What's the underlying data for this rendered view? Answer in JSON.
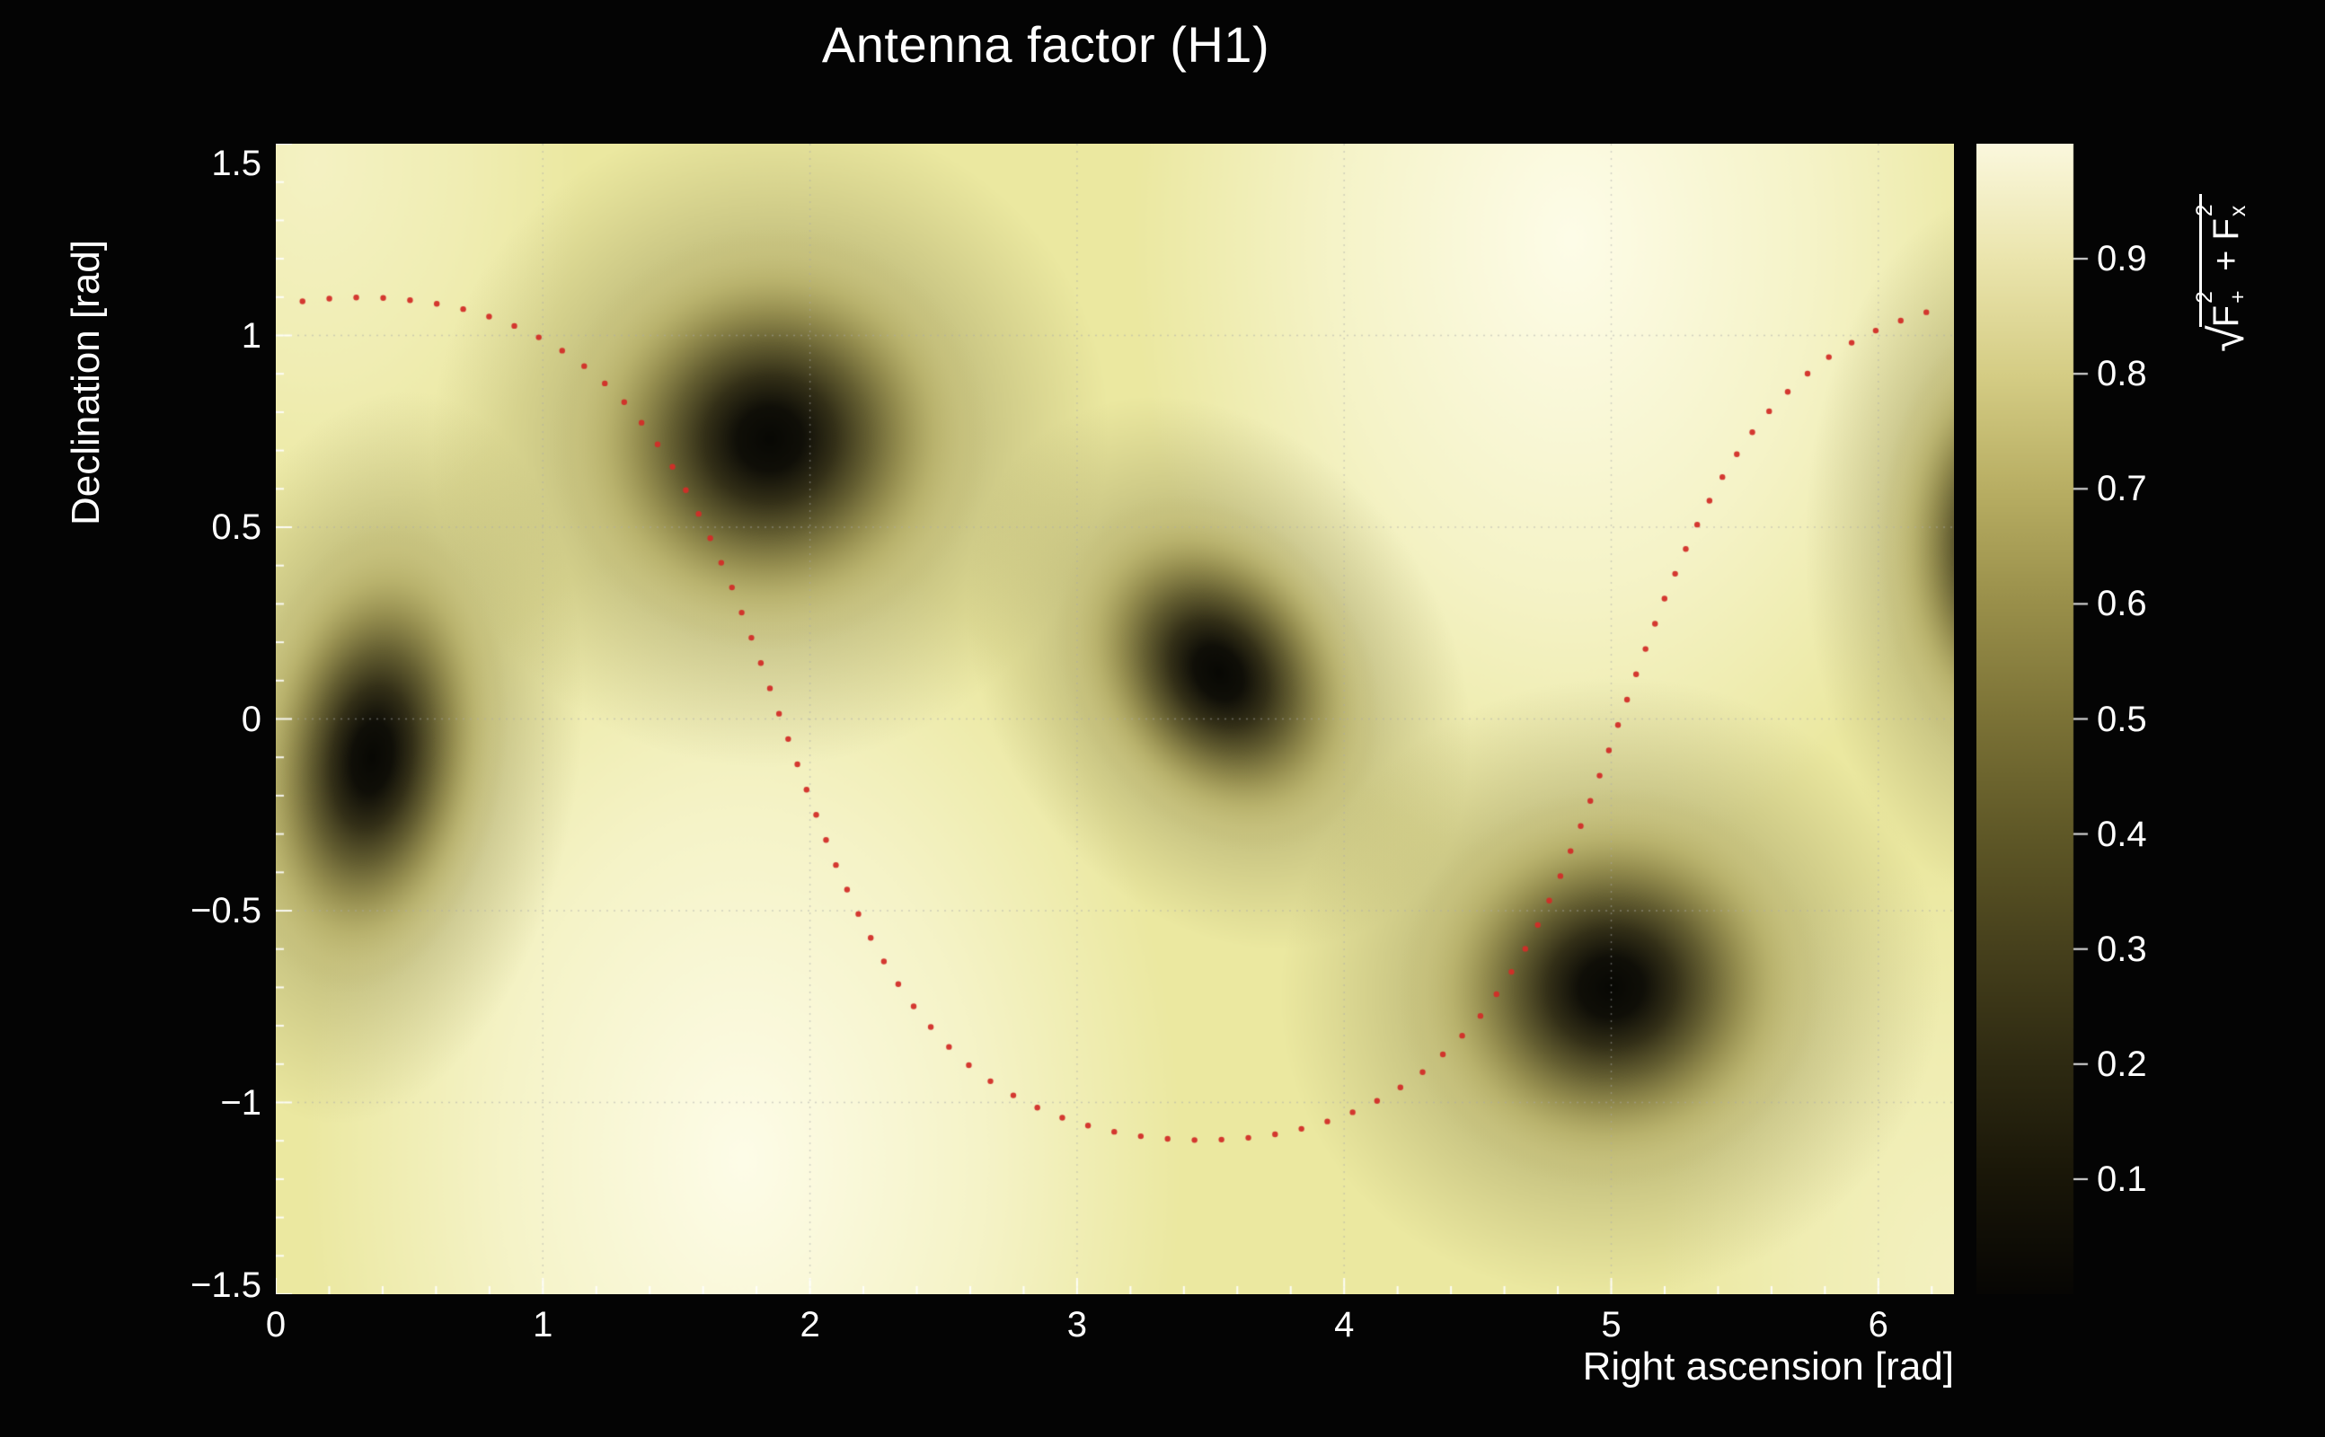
{
  "colors": {
    "background": "#040404",
    "text": "#ffffff",
    "accent_track": "#d22d28"
  },
  "chart_data": {
    "type": "heatmap",
    "title": "Antenna factor (H1)",
    "xlabel": "Right ascension [rad]",
    "ylabel": "Declination [rad]",
    "zlabel": "sqrt(F+^2 + Fx^2)",
    "zlabel_parts": {
      "sqrt": "√",
      "f1": "F",
      "f1_sup": "2",
      "f1_sub": "+",
      "plus": " + ",
      "f2": "F",
      "f2_sup": "2",
      "f2_sub": "x"
    },
    "xlim": [
      0,
      6.2832
    ],
    "ylim": [
      -1.5,
      1.5
    ],
    "zlim": [
      0,
      1.0
    ],
    "x_ticks": [
      0,
      1,
      2,
      3,
      4,
      5,
      6
    ],
    "x_tick_labels": [
      "0",
      "1",
      "2",
      "3",
      "4",
      "5",
      "6"
    ],
    "x_minor_step": 0.2,
    "y_ticks": [
      -1.5,
      -1,
      -0.5,
      0,
      0.5,
      1,
      1.5
    ],
    "y_tick_labels": [
      "−1.5",
      "−1",
      "−0.5",
      "0",
      "0.5",
      "1",
      "1.5"
    ],
    "y_minor_step": 0.1,
    "grid": {
      "x_lines": [
        1,
        2,
        3,
        4,
        5,
        6
      ],
      "y_lines": [
        -1,
        -0.5,
        0,
        0.5,
        1
      ],
      "color": "rgba(170,170,170,0.5)",
      "dash": [
        2,
        6
      ]
    },
    "base_color": "#ebe8a0",
    "bright_regions": [
      {
        "x": 1.75,
        "y": -1.15,
        "r": 1.65,
        "color": "255,254,238",
        "alpha": 0.92
      },
      {
        "x": 4.85,
        "y": 1.25,
        "r": 1.65,
        "color": "255,254,238",
        "alpha": 0.92
      },
      {
        "x": 0.15,
        "y": 1.45,
        "r": 1.0,
        "color": "252,250,224",
        "alpha": 0.55
      },
      {
        "x": 6.28,
        "y": -1.45,
        "r": 1.1,
        "color": "252,250,224",
        "alpha": 0.5
      }
    ],
    "nulls": [
      {
        "x": 0.36,
        "y": -0.1,
        "rx": 0.5,
        "ry": 0.62,
        "rot_deg": 8
      },
      {
        "x": 1.85,
        "y": 0.73,
        "rx": 0.82,
        "ry": 0.55,
        "rot_deg": -15
      },
      {
        "x": 3.53,
        "y": 0.12,
        "rx": 0.55,
        "ry": 0.5,
        "rot_deg": -35
      },
      {
        "x": 5.0,
        "y": -0.7,
        "rx": 0.8,
        "ry": 0.52,
        "rot_deg": -10
      },
      {
        "x": 6.5,
        "y": 0.45,
        "rx": 0.5,
        "ry": 0.6,
        "rot_deg": 0
      }
    ],
    "null_gradient": [
      [
        0.0,
        "rgba(8,8,4,1)"
      ],
      [
        0.15,
        "rgba(16,15,8,1)"
      ],
      [
        0.3,
        "rgba(52,48,24,1)"
      ],
      [
        0.45,
        "rgba(96,90,46,0.95)"
      ],
      [
        0.6,
        "rgba(142,134,72,0.85)"
      ],
      [
        0.75,
        "rgba(178,170,98,0.6)"
      ],
      [
        0.88,
        "rgba(196,188,116,0.3)"
      ],
      [
        1.0,
        "rgba(196,188,116,0)"
      ]
    ],
    "halo_gradient": [
      [
        0.0,
        "rgba(110,104,55,0.50)"
      ],
      [
        0.6,
        "rgba(120,113,60,0.30)"
      ],
      [
        1.0,
        "rgba(130,122,66,0)"
      ]
    ],
    "halo_scale": 1.55,
    "colorbar": {
      "ticks": [
        0.1,
        0.2,
        0.3,
        0.4,
        0.5,
        0.6,
        0.7,
        0.8,
        0.9
      ],
      "tick_labels": [
        "0.1",
        "0.2",
        "0.3",
        "0.4",
        "0.5",
        "0.6",
        "0.7",
        "0.8",
        "0.9"
      ],
      "stops": [
        [
          0.0,
          "#070604"
        ],
        [
          0.1,
          "#191608"
        ],
        [
          0.2,
          "#2e2a12"
        ],
        [
          0.3,
          "#46401c"
        ],
        [
          0.4,
          "#5f5827"
        ],
        [
          0.5,
          "#7b7236"
        ],
        [
          0.6,
          "#998f4a"
        ],
        [
          0.7,
          "#b8ae63"
        ],
        [
          0.8,
          "#d5cd85"
        ],
        [
          0.9,
          "#ebe5ad"
        ],
        [
          1.0,
          "#fbf8dd"
        ]
      ]
    },
    "track": {
      "name": "sky-track",
      "color": "rgba(210,45,40,0.95)",
      "dot_radius_px": 3.2,
      "dot_spacing_px": 30,
      "points": [
        [
          0.1,
          1.089
        ],
        [
          0.2,
          1.096
        ],
        [
          0.3,
          1.099
        ],
        [
          0.4,
          1.098
        ],
        [
          0.5,
          1.092
        ],
        [
          0.6,
          1.083
        ],
        [
          0.7,
          1.069
        ],
        [
          0.8,
          1.049
        ],
        [
          0.9,
          1.023
        ],
        [
          1.0,
          0.99
        ],
        [
          1.1,
          0.949
        ],
        [
          1.2,
          0.896
        ],
        [
          1.3,
          0.83
        ],
        [
          1.4,
          0.747
        ],
        [
          1.5,
          0.642
        ],
        [
          1.6,
          0.513
        ],
        [
          1.7,
          0.357
        ],
        [
          1.8,
          0.177
        ],
        [
          1.9,
          -0.017
        ],
        [
          2.0,
          -0.209
        ],
        [
          2.1,
          -0.386
        ],
        [
          2.2,
          -0.537
        ],
        [
          2.3,
          -0.661
        ],
        [
          2.4,
          -0.761
        ],
        [
          2.5,
          -0.842
        ],
        [
          2.6,
          -0.906
        ],
        [
          2.7,
          -0.957
        ],
        [
          2.8,
          -0.997
        ],
        [
          2.9,
          -1.029
        ],
        [
          3.0,
          -1.053
        ],
        [
          3.1,
          -1.071
        ],
        [
          3.2,
          -1.085
        ],
        [
          3.3,
          -1.093
        ],
        [
          3.4,
          -1.098
        ],
        [
          3.5,
          -1.098
        ],
        [
          3.6,
          -1.095
        ],
        [
          3.7,
          -1.088
        ],
        [
          3.8,
          -1.076
        ],
        [
          3.9,
          -1.058
        ],
        [
          4.0,
          -1.035
        ],
        [
          4.1,
          -1.005
        ],
        [
          4.2,
          -0.966
        ],
        [
          4.3,
          -0.918
        ],
        [
          4.4,
          -0.856
        ],
        [
          4.5,
          -0.784
        ],
        [
          4.6,
          -0.69
        ],
        [
          4.7,
          -0.574
        ],
        [
          4.8,
          -0.426
        ],
        [
          4.9,
          -0.255
        ],
        [
          5.0,
          -0.065
        ],
        [
          5.1,
          0.13
        ],
        [
          5.2,
          0.315
        ],
        [
          5.3,
          0.477
        ],
        [
          5.4,
          0.613
        ],
        [
          5.5,
          0.723
        ],
        [
          5.6,
          0.81
        ],
        [
          5.7,
          0.881
        ],
        [
          5.8,
          0.937
        ],
        [
          5.9,
          0.981
        ],
        [
          6.0,
          1.016
        ],
        [
          6.1,
          1.043
        ],
        [
          6.2,
          1.065
        ]
      ]
    }
  }
}
